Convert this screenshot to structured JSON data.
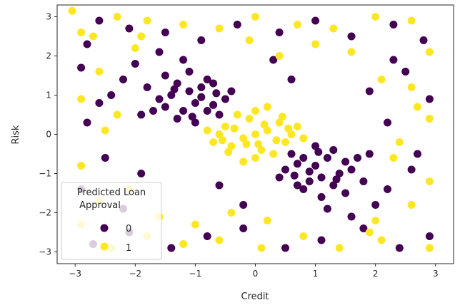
{
  "chart_data": {
    "type": "scatter",
    "xlabel": "Credit",
    "ylabel": "Risk",
    "xlim": [
      -3.3,
      3.3
    ],
    "ylim": [
      -3.3,
      3.3
    ],
    "xticks": [
      -3,
      -2,
      -1,
      0,
      1,
      2,
      3
    ],
    "yticks": [
      -3,
      -2,
      -1,
      0,
      1,
      2,
      3
    ],
    "grid": false,
    "legend": {
      "title_lines": [
        "Predicted Loan",
        "Approval"
      ],
      "placement": "lower-left",
      "entries": [
        {
          "label": "0",
          "color": "#440154"
        },
        {
          "label": "1",
          "color": "#fde725"
        }
      ]
    },
    "series": [
      {
        "label": "0",
        "color": "#440154",
        "points": [
          [
            -1.5,
            1.5
          ],
          [
            -1.3,
            1.3
          ],
          [
            -1.1,
            1.1
          ],
          [
            -0.9,
            0.95
          ],
          [
            -0.7,
            0.75
          ],
          [
            -1.6,
            0.9
          ],
          [
            -1.2,
            0.6
          ],
          [
            -0.8,
            1.4
          ],
          [
            -1.4,
            1.0
          ],
          [
            -1.0,
            0.8
          ],
          [
            -0.6,
            0.5
          ],
          [
            -1.8,
            1.2
          ],
          [
            -1.1,
            1.6
          ],
          [
            -0.5,
            0.9
          ],
          [
            -1.3,
            0.4
          ],
          [
            -1.7,
            0.6
          ],
          [
            -0.9,
            1.2
          ],
          [
            -1.2,
            1.9
          ],
          [
            -0.7,
            1.3
          ],
          [
            -1.5,
            0.7
          ],
          [
            -2.0,
            1.8
          ],
          [
            -1.9,
            0.5
          ],
          [
            -0.4,
            1.1
          ],
          [
            -1.0,
            0.3
          ],
          [
            -2.2,
            1.4
          ],
          [
            -1.6,
            2.1
          ],
          [
            -0.8,
            0.6
          ],
          [
            -1.35,
            1.15
          ],
          [
            -1.05,
            0.45
          ],
          [
            -0.65,
            1.05
          ],
          [
            1.5,
            -1.5
          ],
          [
            1.3,
            -1.3
          ],
          [
            1.1,
            -1.1
          ],
          [
            0.9,
            -0.95
          ],
          [
            0.7,
            -0.75
          ],
          [
            1.6,
            -0.9
          ],
          [
            1.2,
            -0.6
          ],
          [
            0.8,
            -1.4
          ],
          [
            1.4,
            -1.0
          ],
          [
            1.0,
            -0.8
          ],
          [
            0.6,
            -0.5
          ],
          [
            1.8,
            -1.2
          ],
          [
            1.1,
            -1.6
          ],
          [
            0.5,
            -0.9
          ],
          [
            1.3,
            -0.4
          ],
          [
            1.7,
            -0.6
          ],
          [
            0.9,
            -1.2
          ],
          [
            1.2,
            -1.9
          ],
          [
            0.7,
            -1.3
          ],
          [
            1.5,
            -0.7
          ],
          [
            2.0,
            -1.8
          ],
          [
            1.9,
            -0.5
          ],
          [
            0.4,
            -1.1
          ],
          [
            1.0,
            -0.3
          ],
          [
            2.2,
            -1.4
          ],
          [
            1.6,
            -2.1
          ],
          [
            0.8,
            -0.6
          ],
          [
            1.35,
            -1.15
          ],
          [
            1.05,
            -0.45
          ],
          [
            0.65,
            -1.05
          ],
          [
            -2.6,
            2.9
          ],
          [
            -2.1,
            2.7
          ],
          [
            -1.5,
            2.6
          ],
          [
            -0.9,
            2.4
          ],
          [
            -2.8,
            2.3
          ],
          [
            -0.3,
            2.8
          ],
          [
            0.4,
            2.6
          ],
          [
            1.0,
            2.9
          ],
          [
            1.6,
            2.5
          ],
          [
            2.3,
            2.8
          ],
          [
            2.8,
            2.4
          ],
          [
            2.5,
            1.6
          ],
          [
            2.9,
            0.9
          ],
          [
            2.2,
            0.3
          ],
          [
            2.7,
            -0.5
          ],
          [
            -2.7,
            -2.8
          ],
          [
            -2.1,
            -2.5
          ],
          [
            -1.4,
            -2.9
          ],
          [
            -0.8,
            -2.6
          ],
          [
            -0.2,
            -2.4
          ],
          [
            0.5,
            -2.9
          ],
          [
            1.1,
            -2.7
          ],
          [
            1.8,
            -2.4
          ],
          [
            2.4,
            -2.9
          ],
          [
            2.9,
            -2.6
          ],
          [
            -2.9,
            -1.4
          ],
          [
            -2.5,
            -0.6
          ],
          [
            -2.8,
            0.3
          ],
          [
            -2.4,
            1.0
          ],
          [
            -2.9,
            1.7
          ],
          [
            -0.2,
            -1.8
          ],
          [
            0.3,
            1.9
          ],
          [
            -1.9,
            -1.0
          ],
          [
            1.9,
            1.1
          ],
          [
            -2.2,
            -1.9
          ],
          [
            2.3,
            1.9
          ],
          [
            -0.6,
            -1.3
          ],
          [
            0.6,
            1.4
          ],
          [
            -2.6,
            0.8
          ],
          [
            2.6,
            -0.9
          ]
        ]
      },
      {
        "label": "1",
        "color": "#fde725",
        "points": [
          [
            0.0,
            0.0
          ],
          [
            0.2,
            0.1
          ],
          [
            -0.2,
            -0.1
          ],
          [
            0.4,
            0.3
          ],
          [
            -0.4,
            -0.3
          ],
          [
            0.1,
            -0.4
          ],
          [
            -0.1,
            0.4
          ],
          [
            0.5,
            -0.2
          ],
          [
            -0.5,
            0.2
          ],
          [
            0.3,
            -0.5
          ],
          [
            -0.3,
            0.5
          ],
          [
            0.6,
            0.0
          ],
          [
            -0.6,
            0.0
          ],
          [
            0.0,
            0.6
          ],
          [
            0.0,
            -0.6
          ],
          [
            0.7,
            0.2
          ],
          [
            -0.7,
            -0.2
          ],
          [
            0.2,
            0.7
          ],
          [
            -0.2,
            -0.7
          ],
          [
            0.45,
            0.45
          ],
          [
            -0.45,
            -0.45
          ],
          [
            0.8,
            -0.1
          ],
          [
            -0.8,
            0.1
          ],
          [
            0.15,
            0.25
          ],
          [
            -0.15,
            -0.25
          ],
          [
            0.35,
            -0.15
          ],
          [
            -0.35,
            0.15
          ],
          [
            0.55,
            0.15
          ],
          [
            -0.55,
            -0.15
          ],
          [
            0.05,
            -0.25
          ],
          [
            -3.05,
            3.15
          ],
          [
            -2.7,
            2.5
          ],
          [
            -2.3,
            3.0
          ],
          [
            -1.8,
            2.9
          ],
          [
            -1.2,
            2.8
          ],
          [
            -0.6,
            2.7
          ],
          [
            0.0,
            3.0
          ],
          [
            0.7,
            2.8
          ],
          [
            1.3,
            2.7
          ],
          [
            2.0,
            3.0
          ],
          [
            2.6,
            2.9
          ],
          [
            2.9,
            2.1
          ],
          [
            2.6,
            1.2
          ],
          [
            2.9,
            0.4
          ],
          [
            2.4,
            -0.2
          ],
          [
            2.9,
            -1.2
          ],
          [
            2.6,
            -1.8
          ],
          [
            2.9,
            -2.9
          ],
          [
            2.1,
            -2.7
          ],
          [
            1.4,
            -2.9
          ],
          [
            0.8,
            -2.6
          ],
          [
            0.1,
            -2.9
          ],
          [
            -0.6,
            -2.7
          ],
          [
            -1.2,
            -2.8
          ],
          [
            -1.8,
            -2.6
          ],
          [
            -2.4,
            -2.9
          ],
          [
            -2.9,
            -2.3
          ],
          [
            -2.6,
            -1.7
          ],
          [
            -2.9,
            -0.8
          ],
          [
            -2.5,
            0.1
          ],
          [
            -2.9,
            0.9
          ],
          [
            -2.6,
            1.6
          ],
          [
            -2.9,
            2.6
          ],
          [
            -1.0,
            -2.3
          ],
          [
            1.0,
            2.3
          ],
          [
            -2.0,
            2.2
          ],
          [
            2.0,
            -2.2
          ],
          [
            -0.4,
            -2.0
          ],
          [
            0.4,
            2.0
          ],
          [
            -2.1,
            -1.4
          ],
          [
            2.1,
            1.4
          ],
          [
            -1.6,
            -2.1
          ],
          [
            1.6,
            2.1
          ],
          [
            -2.3,
            0.5
          ],
          [
            2.3,
            -0.6
          ],
          [
            -0.1,
            2.4
          ],
          [
            0.2,
            -2.2
          ],
          [
            -1.9,
            2.5
          ],
          [
            1.9,
            -2.5
          ],
          [
            2.7,
            0.7
          ]
        ]
      }
    ]
  }
}
